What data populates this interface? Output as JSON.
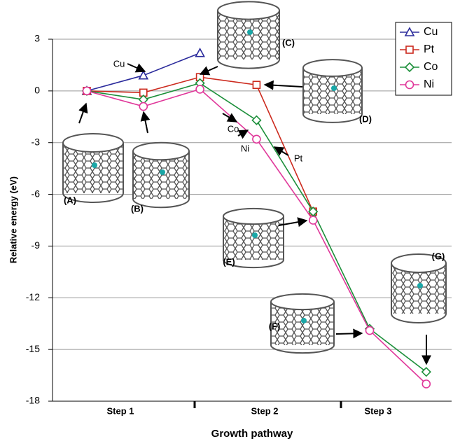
{
  "chart_data": {
    "type": "line",
    "y_label": "Relative energy (eV)",
    "x_label": "Growth pathway",
    "categories": [
      null,
      null,
      null,
      null,
      null,
      null,
      null
    ],
    "x_groups": [
      "Step 1",
      "Step 2",
      "Step 3"
    ],
    "ylim": [
      -18,
      3
    ],
    "yticks": [
      3,
      0,
      -3,
      -6,
      -9,
      -12,
      -15,
      -18
    ],
    "grid": true,
    "legend": "top-right",
    "series": [
      {
        "name": "Cu",
        "color": "#2b2b9c",
        "marker": "triangle",
        "values": [
          0,
          0.9,
          2.2,
          null,
          null,
          null,
          null
        ]
      },
      {
        "name": "Pt",
        "color": "#cc2a1e",
        "marker": "square",
        "values": [
          0,
          -0.1,
          0.8,
          0.35,
          -7.0,
          null,
          null
        ]
      },
      {
        "name": "Co",
        "color": "#1c8f3a",
        "marker": "diamond",
        "values": [
          0,
          -0.5,
          0.45,
          -1.7,
          -7.0,
          -13.8,
          -16.3
        ]
      },
      {
        "name": "Ni",
        "color": "#e0379a",
        "marker": "circle",
        "values": [
          0,
          -0.9,
          0.1,
          -2.8,
          -7.5,
          -13.9,
          -17.0
        ]
      }
    ],
    "annotations": [
      "Cu",
      "Co",
      "Ni",
      "Pt",
      "(A)",
      "(B)",
      "(C)",
      "(D)",
      "(E)",
      "(F)",
      "(G)"
    ]
  }
}
